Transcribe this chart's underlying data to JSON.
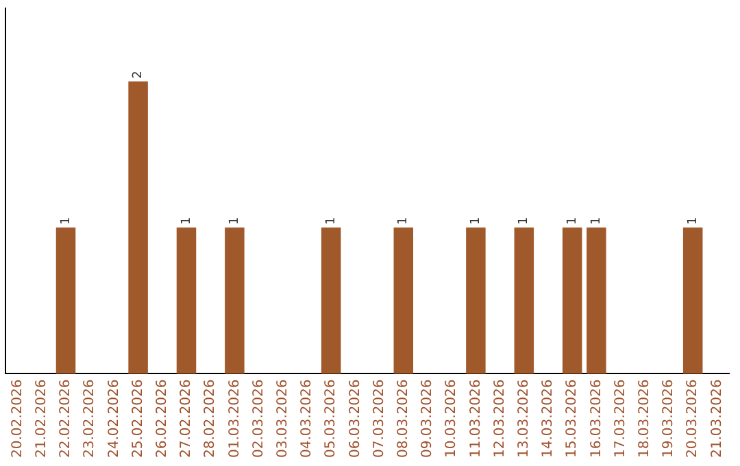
{
  "chart_data": {
    "type": "bar",
    "categories": [
      "20.02.2026",
      "21.02.2026",
      "22.02.2026",
      "23.02.2026",
      "24.02.2026",
      "25.02.2026",
      "26.02.2026",
      "27.02.2026",
      "28.02.2026",
      "01.03.2026",
      "02.03.2026",
      "03.03.2026",
      "04.03.2026",
      "05.03.2026",
      "06.03.2026",
      "07.03.2026",
      "08.03.2026",
      "09.03.2026",
      "10.03.2026",
      "11.03.2026",
      "12.03.2026",
      "13.03.2026",
      "14.03.2026",
      "15.03.2026",
      "16.03.2026",
      "17.03.2026",
      "18.03.2026",
      "19.03.2026",
      "20.03.2026",
      "21.03.2026"
    ],
    "values": [
      null,
      null,
      1,
      null,
      null,
      2,
      null,
      1,
      null,
      1,
      null,
      null,
      null,
      1,
      null,
      null,
      1,
      null,
      null,
      1,
      null,
      1,
      null,
      1,
      1,
      null,
      null,
      null,
      1,
      null
    ],
    "color": "#a0592a",
    "data_labels": true,
    "grid": false,
    "legend": false,
    "tick_labels": "x"
  }
}
